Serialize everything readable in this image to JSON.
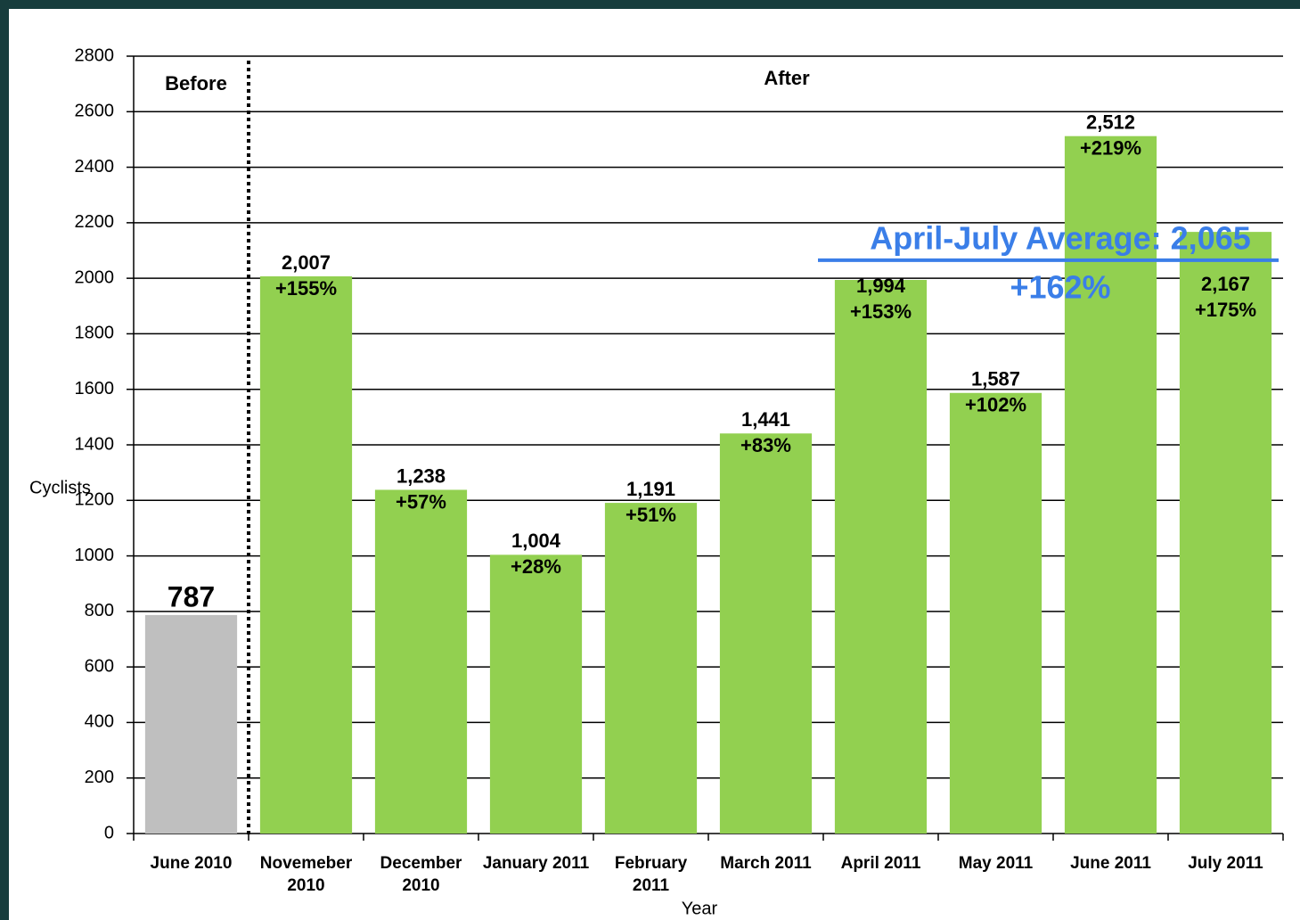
{
  "chart_data": {
    "type": "bar",
    "y_label": "Cyclists",
    "x_label": "Year",
    "categories": [
      "June 2010",
      "Novemeber 2010",
      "December 2010",
      "January 2011",
      "February 2011",
      "March 2011",
      "April 2011",
      "May 2011",
      "June 2011",
      "July 2011"
    ],
    "values": [
      787,
      2007,
      1238,
      1004,
      1191,
      1441,
      1994,
      1587,
      2512,
      2167
    ],
    "value_labels": [
      "787",
      "2,007",
      "1,238",
      "1,004",
      "1,191",
      "1,441",
      "1,994",
      "1,587",
      "2,512",
      "2,167"
    ],
    "changes": [
      null,
      155,
      57,
      28,
      51,
      83,
      153,
      102,
      219,
      175
    ],
    "change_labels": [
      null,
      "+155%",
      "+57%",
      "+28%",
      "+51%",
      "+83%",
      "+153%",
      "+102%",
      "+219%",
      "+175%"
    ],
    "colors": [
      "#bfbfbf",
      "#92d050",
      "#92d050",
      "#92d050",
      "#92d050",
      "#92d050",
      "#92d050",
      "#92d050",
      "#92d050",
      "#92d050"
    ],
    "ylim": [
      0,
      2800
    ],
    "yticks": [
      0,
      200,
      400,
      600,
      800,
      1000,
      1200,
      1400,
      1600,
      1800,
      2000,
      2200,
      2400,
      2600,
      2800
    ],
    "grid": true,
    "annotations": {
      "before": "Before",
      "after": "After",
      "average": {
        "text": "April-July Average: 2,065",
        "value": 2065,
        "change": "+162%",
        "color": "#3a7ee8"
      }
    }
  }
}
